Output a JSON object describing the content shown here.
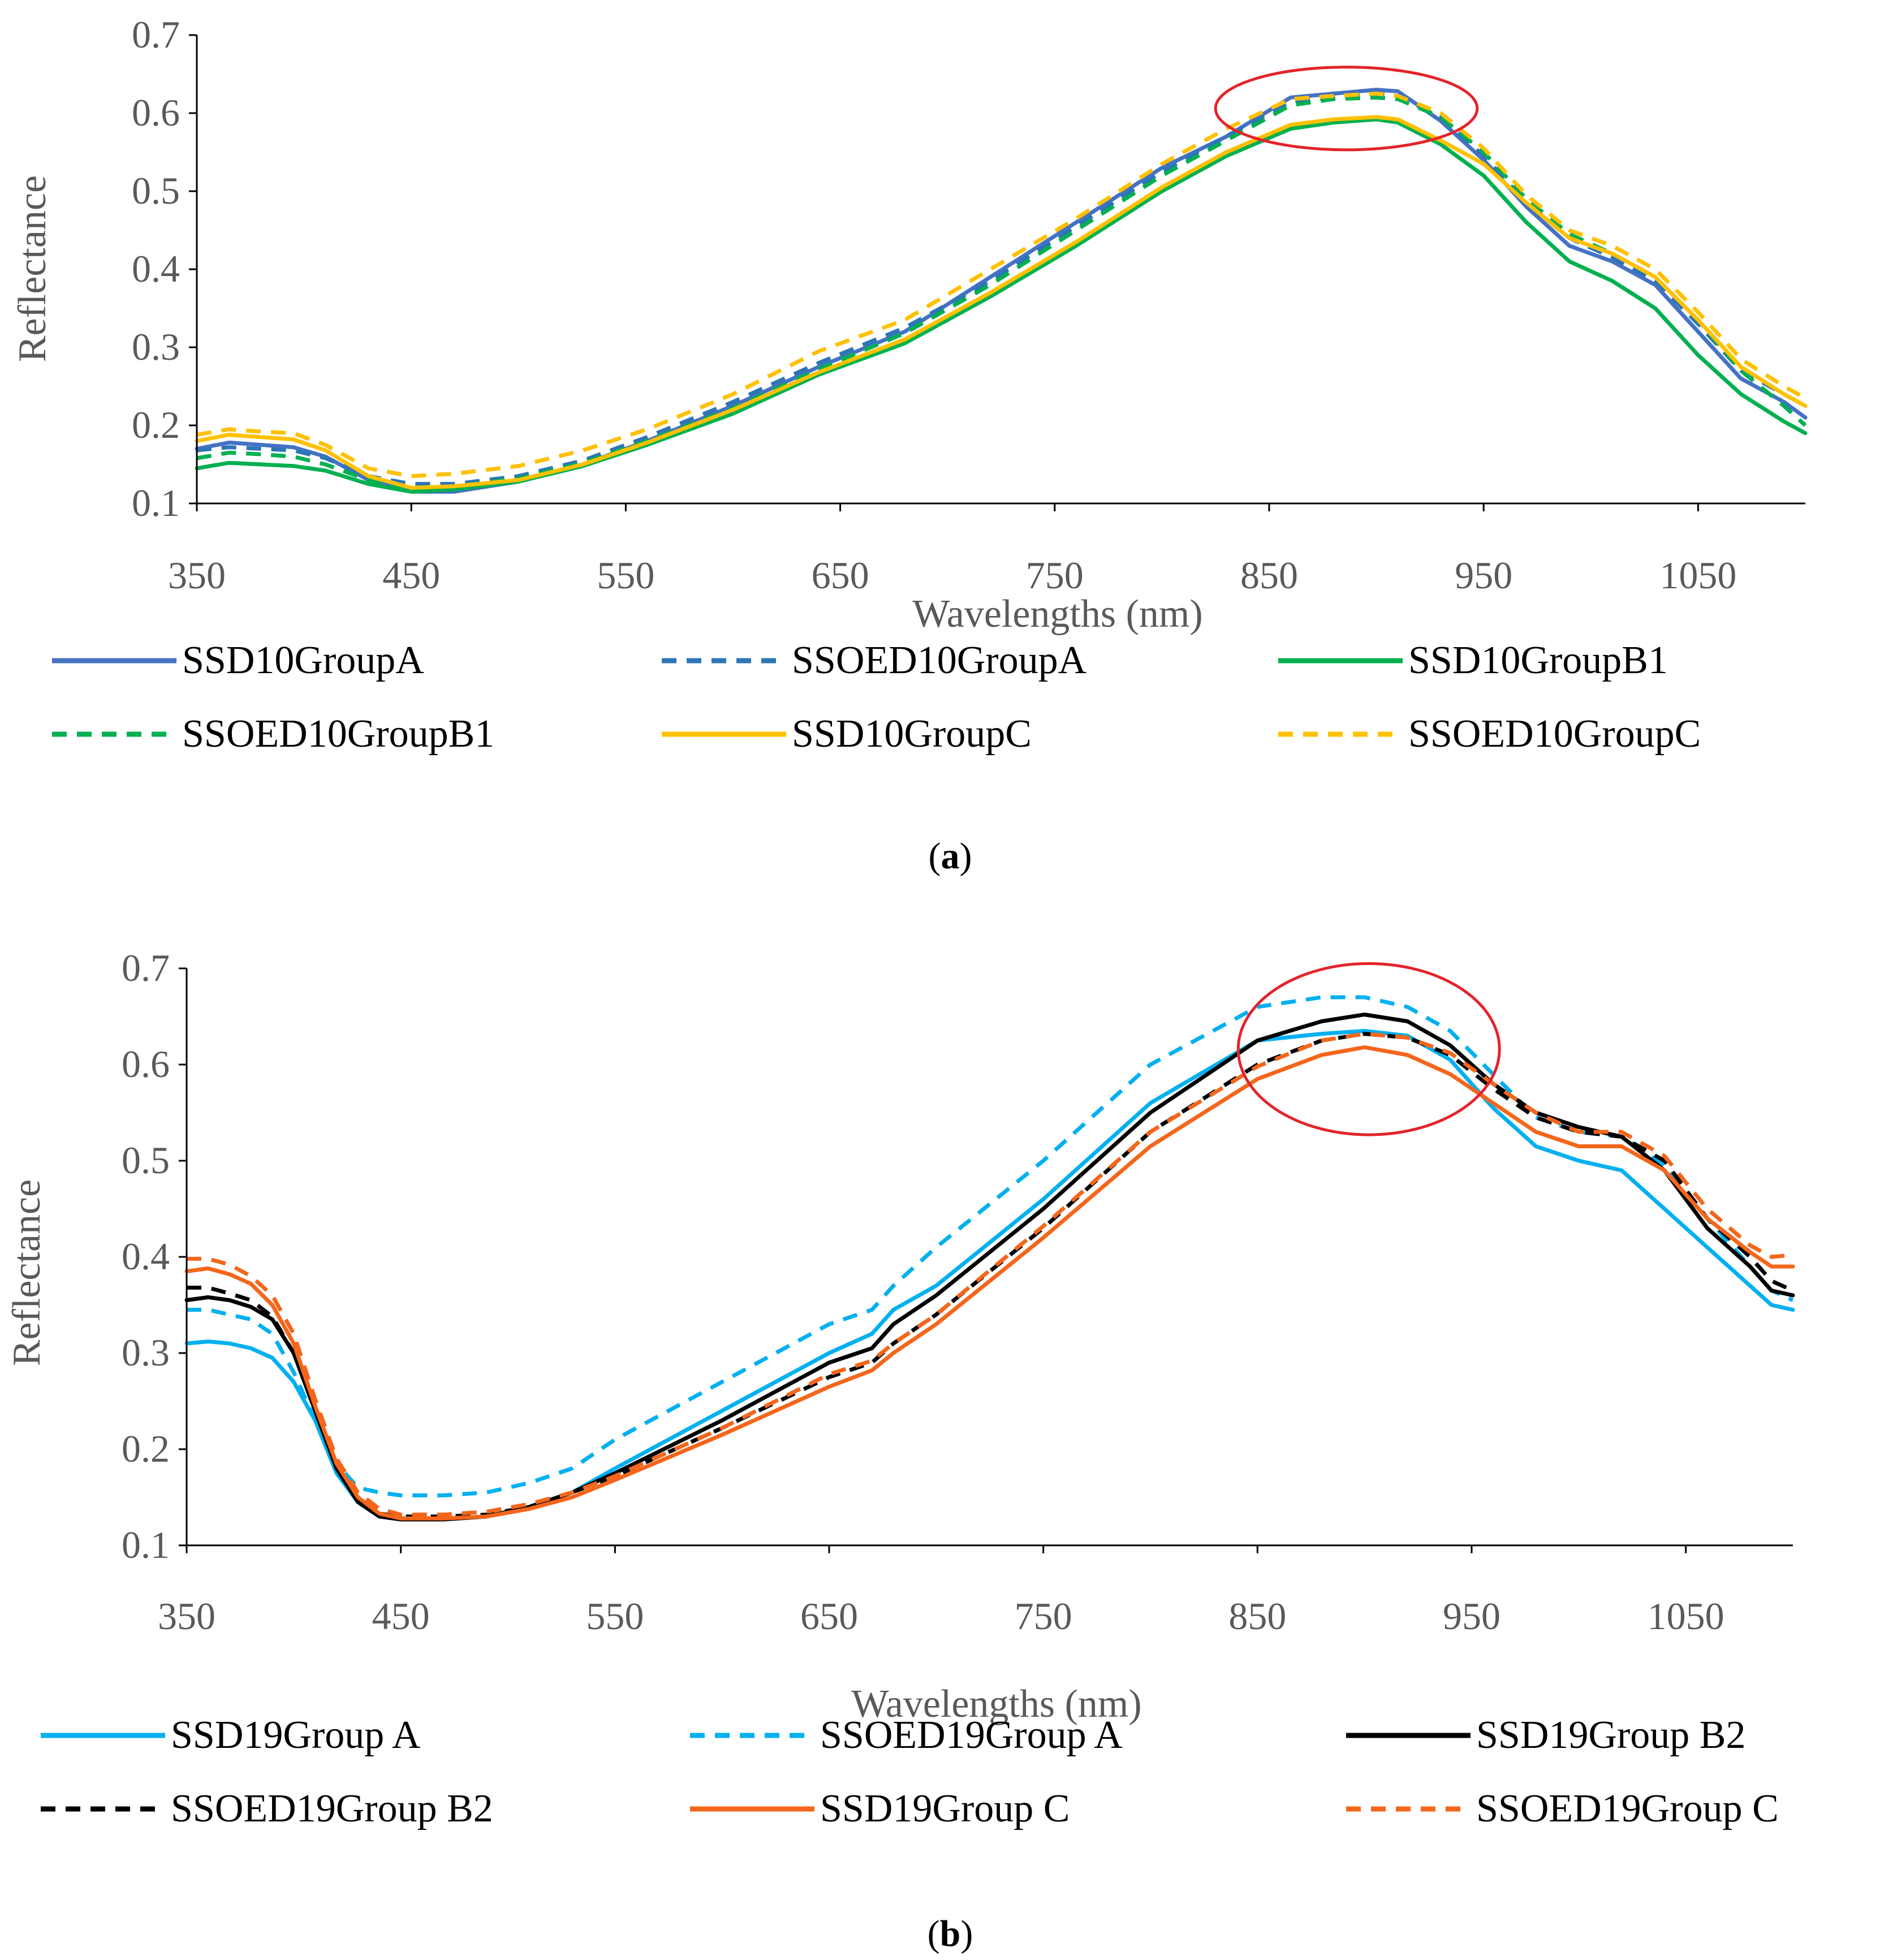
{
  "figure": {
    "captions": [
      "a",
      "b"
    ],
    "highlight_color": "#e3242b"
  },
  "chart_data": [
    {
      "id": "a",
      "type": "line",
      "caption": "a",
      "xlabel": "Wavelengths (nm)",
      "ylabel": "Reflectance",
      "xlim": [
        350,
        1100
      ],
      "ylim": [
        0.1,
        0.7
      ],
      "xticks": [
        350,
        450,
        550,
        650,
        750,
        850,
        950,
        1050
      ],
      "xtick_labels": [
        "350",
        "450",
        "550",
        "650",
        "750",
        "850",
        "950",
        "1050"
      ],
      "yticks": [
        0.1,
        0.2,
        0.3,
        0.4,
        0.5,
        0.6,
        0.7
      ],
      "ytick_labels": [
        "0.1",
        "0.2",
        "0.3",
        "0.4",
        "0.5",
        "0.6",
        "0.7"
      ],
      "grid": false,
      "legend_position": "bottom",
      "annotation": {
        "type": "ellipse",
        "cx": 886,
        "cy": 0.606,
        "rx": 61,
        "ry": 0.053
      },
      "series": [
        {
          "name": "SSD10GroupA",
          "color": "#4472c4",
          "dash": false,
          "x": [
            350,
            365,
            380,
            395,
            410,
            430,
            450,
            470,
            500,
            530,
            560,
            600,
            640,
            680,
            720,
            760,
            800,
            830,
            860,
            880,
            900,
            910,
            930,
            950,
            970,
            990,
            1010,
            1030,
            1050,
            1070,
            1090,
            1100
          ],
          "y": [
            0.17,
            0.178,
            0.175,
            0.172,
            0.16,
            0.13,
            0.115,
            0.115,
            0.128,
            0.15,
            0.18,
            0.225,
            0.275,
            0.32,
            0.39,
            0.46,
            0.53,
            0.57,
            0.62,
            0.625,
            0.63,
            0.628,
            0.59,
            0.54,
            0.48,
            0.43,
            0.41,
            0.38,
            0.32,
            0.26,
            0.23,
            0.21
          ]
        },
        {
          "name": "SSOED10GroupA",
          "color": "#2e75b6",
          "dash": true,
          "x": [
            350,
            365,
            380,
            395,
            410,
            430,
            450,
            470,
            500,
            530,
            560,
            600,
            640,
            680,
            720,
            760,
            800,
            830,
            860,
            880,
            900,
            910,
            930,
            950,
            970,
            990,
            1010,
            1030,
            1050,
            1070,
            1090,
            1100
          ],
          "y": [
            0.168,
            0.172,
            0.17,
            0.168,
            0.158,
            0.135,
            0.125,
            0.125,
            0.135,
            0.155,
            0.185,
            0.23,
            0.28,
            0.325,
            0.385,
            0.455,
            0.525,
            0.57,
            0.615,
            0.62,
            0.625,
            0.622,
            0.595,
            0.545,
            0.485,
            0.44,
            0.415,
            0.385,
            0.33,
            0.27,
            0.24,
            0.225
          ]
        },
        {
          "name": "SSD10GroupB1",
          "color": "#00b050",
          "dash": false,
          "x": [
            350,
            365,
            380,
            395,
            410,
            430,
            450,
            470,
            500,
            530,
            560,
            600,
            640,
            680,
            720,
            760,
            800,
            830,
            860,
            880,
            900,
            910,
            930,
            950,
            970,
            990,
            1010,
            1030,
            1050,
            1070,
            1090,
            1100
          ],
          "y": [
            0.145,
            0.152,
            0.15,
            0.148,
            0.142,
            0.125,
            0.115,
            0.118,
            0.128,
            0.148,
            0.175,
            0.215,
            0.265,
            0.305,
            0.365,
            0.43,
            0.5,
            0.545,
            0.58,
            0.588,
            0.592,
            0.588,
            0.56,
            0.52,
            0.46,
            0.41,
            0.385,
            0.35,
            0.29,
            0.24,
            0.205,
            0.19
          ]
        },
        {
          "name": "SSOED10GroupB1",
          "color": "#00b050",
          "dash": true,
          "x": [
            350,
            365,
            380,
            395,
            410,
            430,
            450,
            470,
            500,
            530,
            560,
            600,
            640,
            680,
            720,
            760,
            800,
            830,
            860,
            880,
            900,
            910,
            930,
            950,
            970,
            990,
            1010,
            1030,
            1050,
            1070,
            1090,
            1100
          ],
          "y": [
            0.158,
            0.165,
            0.163,
            0.16,
            0.15,
            0.13,
            0.12,
            0.122,
            0.132,
            0.152,
            0.18,
            0.222,
            0.272,
            0.318,
            0.38,
            0.45,
            0.52,
            0.565,
            0.61,
            0.618,
            0.62,
            0.618,
            0.595,
            0.55,
            0.49,
            0.445,
            0.42,
            0.39,
            0.335,
            0.27,
            0.225,
            0.2
          ]
        },
        {
          "name": "SSD10GroupC",
          "color": "#ffc000",
          "dash": false,
          "x": [
            350,
            365,
            380,
            395,
            410,
            430,
            450,
            470,
            500,
            530,
            560,
            600,
            640,
            680,
            720,
            760,
            800,
            830,
            860,
            880,
            900,
            910,
            930,
            950,
            970,
            990,
            1010,
            1030,
            1050,
            1070,
            1090,
            1100
          ],
          "y": [
            0.18,
            0.188,
            0.185,
            0.182,
            0.168,
            0.135,
            0.12,
            0.122,
            0.13,
            0.15,
            0.178,
            0.22,
            0.268,
            0.31,
            0.37,
            0.435,
            0.505,
            0.55,
            0.585,
            0.592,
            0.595,
            0.592,
            0.565,
            0.535,
            0.485,
            0.44,
            0.42,
            0.39,
            0.335,
            0.275,
            0.24,
            0.225
          ]
        },
        {
          "name": "SSOED10GroupC",
          "color": "#ffc000",
          "dash": true,
          "x": [
            350,
            365,
            380,
            395,
            410,
            430,
            450,
            470,
            500,
            530,
            560,
            600,
            640,
            680,
            720,
            760,
            800,
            830,
            860,
            880,
            900,
            910,
            930,
            950,
            970,
            990,
            1010,
            1030,
            1050,
            1070,
            1090,
            1100
          ],
          "y": [
            0.188,
            0.195,
            0.192,
            0.19,
            0.175,
            0.145,
            0.135,
            0.138,
            0.148,
            0.168,
            0.195,
            0.24,
            0.295,
            0.335,
            0.4,
            0.465,
            0.535,
            0.58,
            0.618,
            0.622,
            0.625,
            0.622,
            0.6,
            0.555,
            0.495,
            0.45,
            0.43,
            0.4,
            0.345,
            0.285,
            0.25,
            0.235
          ]
        }
      ]
    },
    {
      "id": "b",
      "type": "line",
      "caption": "b",
      "xlabel": "Wavelengths (nm)",
      "ylabel": "Reflectance",
      "xlim": [
        350,
        1100
      ],
      "ylim": [
        0.1,
        0.7
      ],
      "xticks": [
        350,
        450,
        550,
        650,
        750,
        850,
        950,
        1050
      ],
      "xtick_labels": [
        "350",
        "450",
        "550",
        "650",
        "750",
        "850",
        "950",
        "1050"
      ],
      "yticks": [
        0.1,
        0.2,
        0.3,
        0.4,
        0.5,
        0.6,
        0.7
      ],
      "ytick_labels": [
        "0.1",
        "0.2",
        "0.3",
        "0.4",
        "0.5",
        "0.6",
        "0.7"
      ],
      "grid": false,
      "legend_position": "bottom",
      "annotation": {
        "type": "ellipse",
        "cx": 902,
        "cy": 0.616,
        "rx": 61,
        "ry": 0.089
      },
      "series": [
        {
          "name": "SSD19Group A",
          "color": "#00b0f0",
          "dash": false,
          "x": [
            350,
            360,
            370,
            380,
            390,
            400,
            410,
            420,
            430,
            440,
            450,
            470,
            490,
            510,
            530,
            550,
            600,
            650,
            670,
            680,
            700,
            750,
            800,
            850,
            880,
            900,
            920,
            940,
            960,
            980,
            1000,
            1020,
            1040,
            1060,
            1080,
            1090,
            1100
          ],
          "y": [
            0.31,
            0.312,
            0.31,
            0.305,
            0.295,
            0.27,
            0.23,
            0.175,
            0.145,
            0.13,
            0.128,
            0.128,
            0.13,
            0.14,
            0.155,
            0.18,
            0.24,
            0.3,
            0.32,
            0.345,
            0.37,
            0.46,
            0.56,
            0.625,
            0.632,
            0.635,
            0.63,
            0.605,
            0.555,
            0.515,
            0.5,
            0.49,
            0.45,
            0.41,
            0.37,
            0.35,
            0.345
          ]
        },
        {
          "name": "SSOED19Group A",
          "color": "#00b0f0",
          "dash": true,
          "x": [
            350,
            360,
            370,
            380,
            390,
            400,
            410,
            420,
            430,
            440,
            450,
            470,
            490,
            510,
            530,
            550,
            600,
            650,
            670,
            680,
            700,
            750,
            800,
            850,
            880,
            900,
            920,
            940,
            960,
            980,
            1000,
            1020,
            1040,
            1060,
            1080,
            1090,
            1100
          ],
          "y": [
            0.345,
            0.345,
            0.34,
            0.335,
            0.32,
            0.28,
            0.23,
            0.185,
            0.16,
            0.155,
            0.152,
            0.152,
            0.155,
            0.165,
            0.18,
            0.21,
            0.27,
            0.33,
            0.345,
            0.37,
            0.41,
            0.5,
            0.6,
            0.66,
            0.67,
            0.67,
            0.66,
            0.635,
            0.59,
            0.545,
            0.53,
            0.525,
            0.495,
            0.44,
            0.39,
            0.365,
            0.355
          ]
        },
        {
          "name": "SSD19Group B2",
          "color": "#000000",
          "dash": false,
          "x": [
            350,
            360,
            370,
            380,
            390,
            400,
            410,
            420,
            430,
            440,
            450,
            470,
            490,
            510,
            530,
            550,
            600,
            650,
            670,
            680,
            700,
            750,
            800,
            850,
            880,
            900,
            920,
            940,
            960,
            980,
            1000,
            1020,
            1040,
            1060,
            1080,
            1090,
            1100
          ],
          "y": [
            0.355,
            0.358,
            0.355,
            0.348,
            0.335,
            0.3,
            0.24,
            0.18,
            0.145,
            0.13,
            0.127,
            0.127,
            0.13,
            0.14,
            0.155,
            0.175,
            0.23,
            0.29,
            0.305,
            0.33,
            0.36,
            0.45,
            0.55,
            0.625,
            0.645,
            0.652,
            0.645,
            0.62,
            0.58,
            0.55,
            0.535,
            0.525,
            0.49,
            0.43,
            0.39,
            0.365,
            0.36
          ]
        },
        {
          "name": "SSOED19Group B2",
          "color": "#000000",
          "dash": true,
          "x": [
            350,
            360,
            370,
            380,
            390,
            400,
            410,
            420,
            430,
            440,
            450,
            470,
            490,
            510,
            530,
            550,
            600,
            650,
            670,
            680,
            700,
            750,
            800,
            850,
            880,
            900,
            920,
            940,
            960,
            980,
            1000,
            1020,
            1040,
            1060,
            1080,
            1090,
            1100
          ],
          "y": [
            0.368,
            0.368,
            0.362,
            0.355,
            0.338,
            0.3,
            0.24,
            0.18,
            0.148,
            0.133,
            0.13,
            0.13,
            0.132,
            0.14,
            0.155,
            0.172,
            0.222,
            0.275,
            0.29,
            0.31,
            0.34,
            0.43,
            0.53,
            0.6,
            0.625,
            0.632,
            0.628,
            0.61,
            0.575,
            0.545,
            0.53,
            0.525,
            0.5,
            0.44,
            0.4,
            0.375,
            0.365
          ]
        },
        {
          "name": "SSD19Group C",
          "color": "#f4661b",
          "dash": false,
          "x": [
            350,
            360,
            370,
            380,
            390,
            400,
            410,
            420,
            430,
            440,
            450,
            470,
            490,
            510,
            530,
            550,
            600,
            650,
            670,
            680,
            700,
            750,
            800,
            850,
            880,
            900,
            920,
            940,
            960,
            980,
            1000,
            1020,
            1040,
            1060,
            1080,
            1090,
            1100
          ],
          "y": [
            0.385,
            0.388,
            0.382,
            0.372,
            0.35,
            0.31,
            0.245,
            0.185,
            0.15,
            0.133,
            0.128,
            0.128,
            0.13,
            0.138,
            0.15,
            0.168,
            0.215,
            0.265,
            0.282,
            0.3,
            0.33,
            0.42,
            0.515,
            0.585,
            0.61,
            0.618,
            0.61,
            0.59,
            0.56,
            0.53,
            0.515,
            0.515,
            0.49,
            0.44,
            0.405,
            0.39,
            0.39
          ]
        },
        {
          "name": "SSOED19Group C",
          "color": "#f4661b",
          "dash": true,
          "x": [
            350,
            360,
            370,
            380,
            390,
            400,
            410,
            420,
            430,
            440,
            450,
            470,
            490,
            510,
            530,
            550,
            600,
            650,
            670,
            680,
            700,
            750,
            800,
            850,
            880,
            900,
            920,
            940,
            960,
            980,
            1000,
            1020,
            1040,
            1060,
            1080,
            1090,
            1100
          ],
          "y": [
            0.398,
            0.398,
            0.392,
            0.38,
            0.36,
            0.32,
            0.252,
            0.19,
            0.155,
            0.138,
            0.132,
            0.132,
            0.135,
            0.143,
            0.155,
            0.172,
            0.222,
            0.278,
            0.292,
            0.31,
            0.34,
            0.432,
            0.53,
            0.598,
            0.625,
            0.632,
            0.628,
            0.612,
            0.58,
            0.55,
            0.53,
            0.53,
            0.505,
            0.45,
            0.412,
            0.4,
            0.402
          ]
        }
      ]
    }
  ]
}
